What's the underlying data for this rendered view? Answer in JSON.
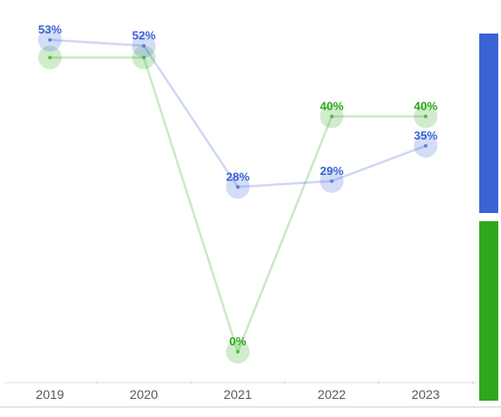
{
  "chart_data": {
    "type": "line",
    "title": "",
    "xlabel": "",
    "ylabel": "",
    "categories": [
      "2019",
      "2020",
      "2021",
      "2022",
      "2023"
    ],
    "ylim": [
      0,
      55
    ],
    "grid": false,
    "legend": "right (color bars, no text)",
    "series": [
      {
        "color": "#3b63d4",
        "values": [
          53,
          52,
          28,
          29,
          35
        ],
        "labels": [
          "53%",
          "52%",
          "28%",
          "29%",
          "35%"
        ]
      },
      {
        "color": "#2ea81a",
        "values": [
          50,
          50,
          0,
          40,
          40
        ],
        "labels": [
          "",
          "",
          "0%",
          "40%",
          "40%"
        ]
      }
    ]
  }
}
